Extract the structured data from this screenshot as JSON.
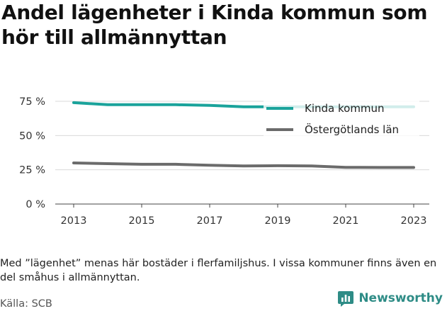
{
  "title": "Andel lägenheter i Kinda kommun som hör till allmännyttan",
  "note": "Med ”lägenhet” menas här bostäder i flerfamiljshus. I vissa kommuner finns även en del småhus i allmännyttan.",
  "source": "Källa: SCB",
  "brand": {
    "name": "Newsworthy",
    "icon": "bar-chart-logo-icon",
    "color": "#2e8c86"
  },
  "chart_data": {
    "type": "line",
    "x": [
      2013,
      2014,
      2015,
      2016,
      2017,
      2018,
      2019,
      2020,
      2021,
      2022,
      2023
    ],
    "xticks": [
      2013,
      2015,
      2017,
      2019,
      2021,
      2023
    ],
    "xtick_labels": [
      "2013",
      "2015",
      "2017",
      "2019",
      "2021",
      "2023"
    ],
    "ylim": [
      0,
      75
    ],
    "yticks": [
      0,
      25,
      50,
      75
    ],
    "ytick_labels": [
      "0 %",
      "25 %",
      "50 %",
      "75 %"
    ],
    "grid": "horizontal",
    "legend_position": "top-right",
    "series": [
      {
        "name": "Kinda kommun",
        "color": "#1aa39b",
        "values": [
          74,
          72.5,
          72.5,
          72.5,
          72,
          71,
          71,
          71,
          71,
          71,
          71
        ]
      },
      {
        "name": "Östergötlands län",
        "color": "#6b6b6b",
        "values": [
          30,
          29.5,
          29,
          29,
          28.3,
          27.8,
          28,
          27.8,
          26.8,
          26.7,
          26.7
        ]
      }
    ]
  }
}
